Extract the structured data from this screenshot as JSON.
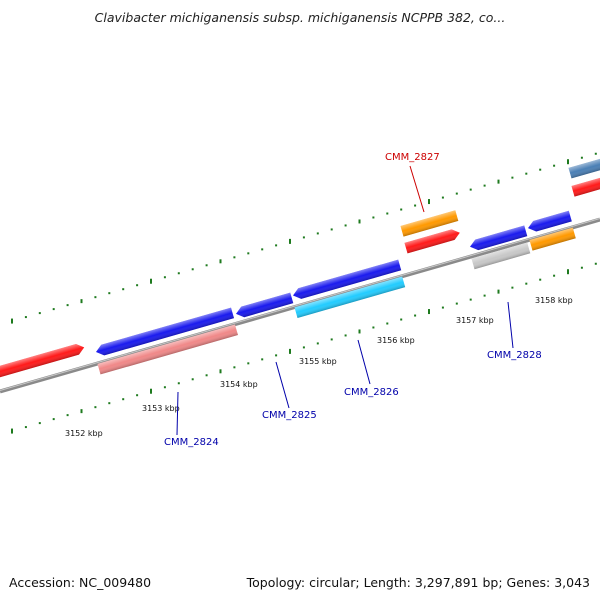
{
  "title": "Clavibacter michiganensis subsp. michiganensis NCPPB 382, co...",
  "footer": {
    "accession": "Accession: NC_009480",
    "topology": "Topology: circular; Length: 3,297,891 bp; Genes: 3,043"
  },
  "colors": {
    "backbone": "#8a8a8a",
    "ticks": "#1e7a1e",
    "label_blue": "#0000aa",
    "label_red": "#cc0000"
  },
  "kbp_labels": [
    "3152 kbp",
    "3153 kbp",
    "3154 kbp",
    "3155 kbp",
    "3156 kbp",
    "3157 kbp",
    "3158 kbp"
  ],
  "gene_labels": [
    {
      "text": "CMM_2824",
      "color": "#0000aa"
    },
    {
      "text": "CMM_2825",
      "color": "#0000aa"
    },
    {
      "text": "CMM_2826",
      "color": "#0000aa"
    },
    {
      "text": "CMM_2827",
      "color": "#cc0000"
    },
    {
      "text": "CMM_2828",
      "color": "#0000aa"
    }
  ]
}
